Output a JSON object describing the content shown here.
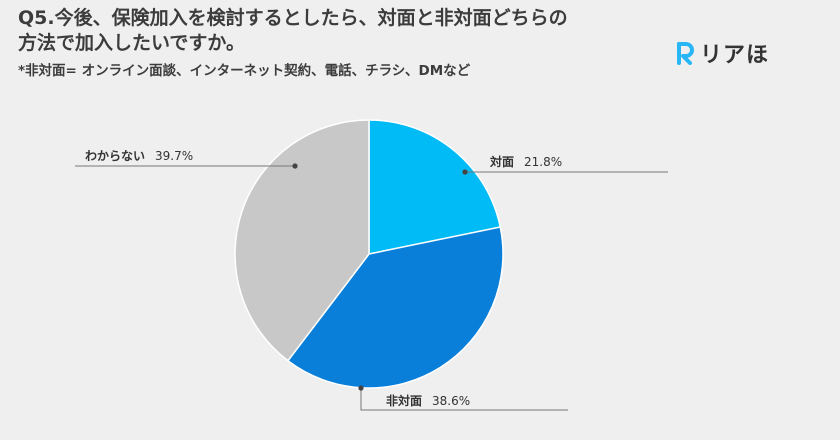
{
  "title_line1": "Q5.今後、保険加入を検討するとしたら、対面と非対面どちらの",
  "title_line2": "方法で加入したいですか。",
  "note": "*非対面= オンライン面談、インターネット契約、電話、チラシ、DMなど",
  "logo": {
    "text": "リアほ",
    "mark_icon": "r-logo-icon",
    "mark_color": "#29b6f6"
  },
  "chart_data": {
    "type": "pie",
    "slices": [
      {
        "label": "対面",
        "percent_text": "21.8%",
        "value": 21.8,
        "color": "#00bbf5"
      },
      {
        "label": "非対面",
        "percent_text": "38.6%",
        "value": 38.6,
        "color": "#0a7fd9"
      },
      {
        "label": "わからない",
        "percent_text": "39.7%",
        "value": 39.7,
        "color": "#c8c8c8"
      }
    ],
    "start_angle": "12 o'clock",
    "direction": "clockwise",
    "legend": "none",
    "labels": "outside with leader lines"
  }
}
